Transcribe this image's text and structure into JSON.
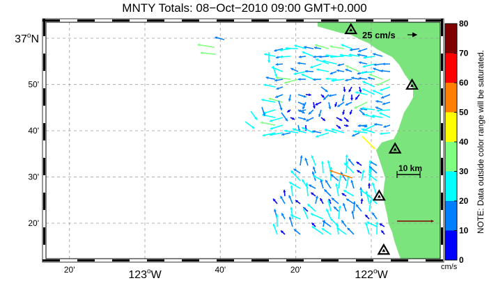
{
  "title": "MNTY Totals: 08−Oct−2010 09:00 GMT+0.000",
  "map": {
    "lat_labels": [
      {
        "lat": 37.0,
        "deg": "37",
        "sup": "o",
        "suf": "N"
      },
      {
        "lat": 36.8333,
        "deg": "50'",
        "sup": "",
        "suf": ""
      },
      {
        "lat": 36.6667,
        "deg": "40'",
        "sup": "",
        "suf": ""
      },
      {
        "lat": 36.5,
        "deg": "30'",
        "sup": "",
        "suf": ""
      },
      {
        "lat": 36.3333,
        "deg": "20'",
        "sup": "",
        "suf": ""
      }
    ],
    "lon_labels": [
      {
        "lon": -123.3333,
        "deg": "20'",
        "sup": "",
        "suf": "",
        "big": false
      },
      {
        "lon": -123.0,
        "deg": "123",
        "sup": "o",
        "suf": "W",
        "big": true
      },
      {
        "lon": -122.6667,
        "deg": "40'",
        "sup": "",
        "suf": "",
        "big": false
      },
      {
        "lon": -122.3333,
        "deg": "20'",
        "sup": "",
        "suf": "",
        "big": false
      },
      {
        "lon": -122.0,
        "deg": "122",
        "sup": "o",
        "suf": "W",
        "big": true
      }
    ],
    "scale_arrow_label": "25 cm/s",
    "scale_bar_label": "10 km",
    "land_color": "#7CE47C",
    "sites": [
      {
        "lon": -122.09,
        "lat": 37.03
      },
      {
        "lon": -121.82,
        "lat": 36.83
      },
      {
        "lon": -121.895,
        "lat": 36.6
      },
      {
        "lon": -121.965,
        "lat": 36.43
      },
      {
        "lon": -121.945,
        "lat": 36.235
      }
    ],
    "vector_notes": "surface current vectors (cm/s) colored by speed"
  },
  "colorbar": {
    "ticks": [
      "80",
      "70",
      "60",
      "50",
      "40",
      "30",
      "20",
      "10",
      "0"
    ],
    "colors": [
      "#7F0000",
      "#FF0000",
      "#FF8000",
      "#FFFF00",
      "#80FF80",
      "#00FFFF",
      "#0080FF",
      "#0000FF"
    ],
    "unit": "cm/s",
    "note": "NOTE: Data outside color range will be saturated."
  }
}
